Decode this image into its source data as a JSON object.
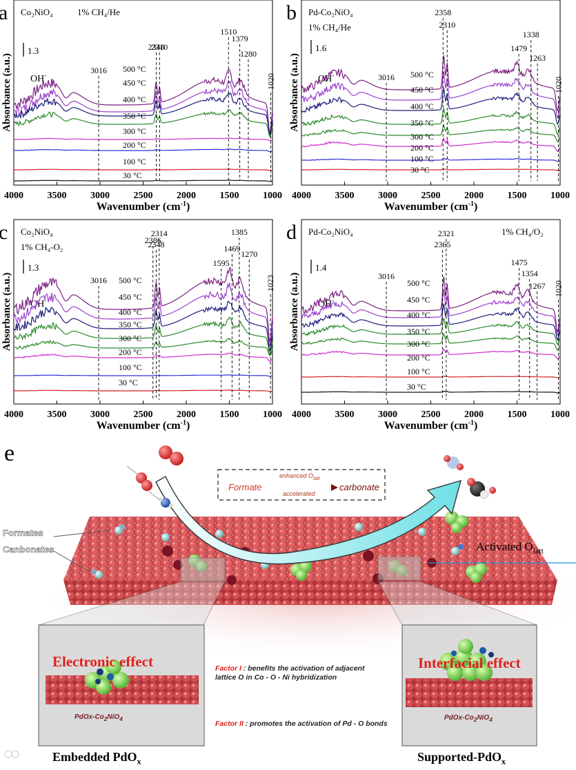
{
  "chart_data": [
    {
      "type": "line",
      "panel_label": "a",
      "sample": "Co₂NiO₄",
      "atmosphere": "1% CH₄/He",
      "xlabel": "Wavenumber (cm",
      "xlabel_sup": "-1",
      "xlabel_end": ")",
      "ylabel": "Absorbance (a.u.)",
      "xlim": [
        4000,
        1000
      ],
      "x_ticks": [
        "4000",
        "3500",
        "3000",
        "2500",
        "2000",
        "1500",
        "1000"
      ],
      "scale_bar": "1.3",
      "oh_label": "OH",
      "oh_sup": "-",
      "peak_labels": [
        "3016",
        "2348",
        "2310",
        "1510",
        "1379",
        "1280",
        "1020"
      ],
      "peak_positions": [
        3016,
        2348,
        2310,
        1510,
        1379,
        1280,
        1020
      ],
      "series": [
        {
          "name": "500 °C",
          "color": "#7b1f82"
        },
        {
          "name": "450 °C",
          "color": "#9b3fcf"
        },
        {
          "name": "400 °C",
          "color": "#1c1c7c"
        },
        {
          "name": "350 °C",
          "color": "#2a8a2a"
        },
        {
          "name": "300 °C",
          "color": "#d12cd1"
        },
        {
          "name": "200 °C",
          "color": "#2d2dd9"
        },
        {
          "name": "100 °C",
          "color": "#d42020"
        },
        {
          "name": "30 °C",
          "color": "#111111"
        }
      ]
    },
    {
      "type": "line",
      "panel_label": "b",
      "sample": "Pd-Co₂NiO₄",
      "atmosphere": "1% CH₄/He",
      "xlabel": "Wavenumber (cm",
      "xlabel_sup": "-1",
      "xlabel_end": ")",
      "ylabel": "Absorbance (a.u.)",
      "xlim": [
        4000,
        1000
      ],
      "x_ticks": [
        "4000",
        "3500",
        "3000",
        "2500",
        "2000",
        "1500",
        "1000"
      ],
      "scale_bar": "1.6",
      "oh_label": "OH",
      "oh_sup": "-",
      "peak_labels": [
        "3016",
        "2358",
        "2310",
        "1479",
        "1338",
        "1263",
        "1020"
      ],
      "peak_positions": [
        3016,
        2358,
        2310,
        1479,
        1338,
        1263,
        1020
      ],
      "series": [
        {
          "name": "500 °C",
          "color": "#7b1f82"
        },
        {
          "name": "450 °C",
          "color": "#9b3fcf"
        },
        {
          "name": "400 °C",
          "color": "#1c1c7c"
        },
        {
          "name": "350 °C",
          "color": "#2a8a2a"
        },
        {
          "name": "300 °C",
          "color": "#2a8a2a"
        },
        {
          "name": "200 °C",
          "color": "#d12cd1"
        },
        {
          "name": "100 °C",
          "color": "#2d2dd9"
        },
        {
          "name": "30 °C",
          "color": "#d42020"
        }
      ]
    },
    {
      "type": "line",
      "panel_label": "c",
      "sample": "Co₂NiO₄",
      "atmosphere": "1% CH₄-O₂",
      "xlabel": "Wavenumber (cm",
      "xlabel_sup": "-1",
      "xlabel_end": ")",
      "ylabel": "Absorbance (a.u.)",
      "xlim": [
        4000,
        1000
      ],
      "x_ticks": [
        "4000",
        "3500",
        "3000",
        "2500",
        "2000",
        "1500",
        "1000"
      ],
      "scale_bar": "1.3",
      "oh_label": "OH",
      "oh_sup": "-",
      "peak_labels": [
        "3016",
        "2386",
        "2348",
        "2314",
        "1595",
        "1469",
        "1385",
        "1270",
        "1023"
      ],
      "peak_positions": [
        3016,
        2386,
        2348,
        2314,
        1595,
        1469,
        1385,
        1270,
        1023
      ],
      "series": [
        {
          "name": "500 °C",
          "color": "#7b1f82"
        },
        {
          "name": "450 °C",
          "color": "#9b3fcf"
        },
        {
          "name": "400 °C",
          "color": "#1c1c7c"
        },
        {
          "name": "350 °C",
          "color": "#2a8a2a"
        },
        {
          "name": "300 °C",
          "color": "#2a8a2a"
        },
        {
          "name": "200 °C",
          "color": "#d12cd1"
        },
        {
          "name": "100 °C",
          "color": "#2d2dd9"
        },
        {
          "name": "30 °C",
          "color": "#d42020"
        }
      ]
    },
    {
      "type": "line",
      "panel_label": "d",
      "sample": "Pd-Co₂NiO₄",
      "atmosphere": "1% CH₄/O₂",
      "xlabel": "Wavenumber (cm",
      "xlabel_sup": "-1",
      "xlabel_end": ")",
      "ylabel": "Absorbance (a.u.)",
      "xlim": [
        4000,
        1000
      ],
      "x_ticks": [
        "4000",
        "3500",
        "3000",
        "2500",
        "2000",
        "1500",
        "1000"
      ],
      "scale_bar": "1.4",
      "oh_label": "OH",
      "oh_sup": "-",
      "peak_labels": [
        "3016",
        "2365",
        "2321",
        "1475",
        "1354",
        "1267",
        "1020"
      ],
      "peak_positions": [
        3016,
        2365,
        2321,
        1475,
        1354,
        1267,
        1020
      ],
      "series": [
        {
          "name": "500 °C",
          "color": "#7b1f82"
        },
        {
          "name": "450 °C",
          "color": "#9b3fcf"
        },
        {
          "name": "400 °C",
          "color": "#1c1c7c"
        },
        {
          "name": "350 °C",
          "color": "#2a8a2a"
        },
        {
          "name": "300 °C",
          "color": "#2a8a2a"
        },
        {
          "name": "200 °C",
          "color": "#d12cd1"
        },
        {
          "name": "100 °C",
          "color": "#d42020"
        },
        {
          "name": "30 °C",
          "color": "#111111"
        }
      ]
    }
  ],
  "scheme": {
    "panel_label": "e",
    "formates_label": "Formates",
    "carbonates_label": "Canbonates",
    "flow_formate": "Formate",
    "flow_carbonate": "carbonate",
    "flow_top_prefix": "enhanced O",
    "flow_top_sub": "latt",
    "flow_bottom": "accelerated",
    "activated_prefix": "Activated O",
    "activated_sub": "latt",
    "left_effect": "Electronic effect",
    "right_effect": "Interfacial effect",
    "left_material": "PdOx-Co",
    "right_material": "PdOx-Co",
    "material_sub1": "2",
    "material_mid": "NiO",
    "material_sub2": "4",
    "factor1_tag": "Factor I",
    "factor1_text": " : benefits the activation of adjacent lattice O in Co - O - Ni hybridization",
    "factor2_tag": "Factor II",
    "factor2_text": " : promotes the activation of Pd - O bonds",
    "left_bottom_prefix": "Embedded PdO",
    "left_bottom_sub": "x",
    "right_bottom_prefix": "Supported-PdO",
    "right_bottom_sub": "x"
  },
  "colors": {
    "lattice_red": "#d84a4a",
    "arrow_cyan": "#7fe3e8",
    "effect_red": "#e0201c"
  }
}
